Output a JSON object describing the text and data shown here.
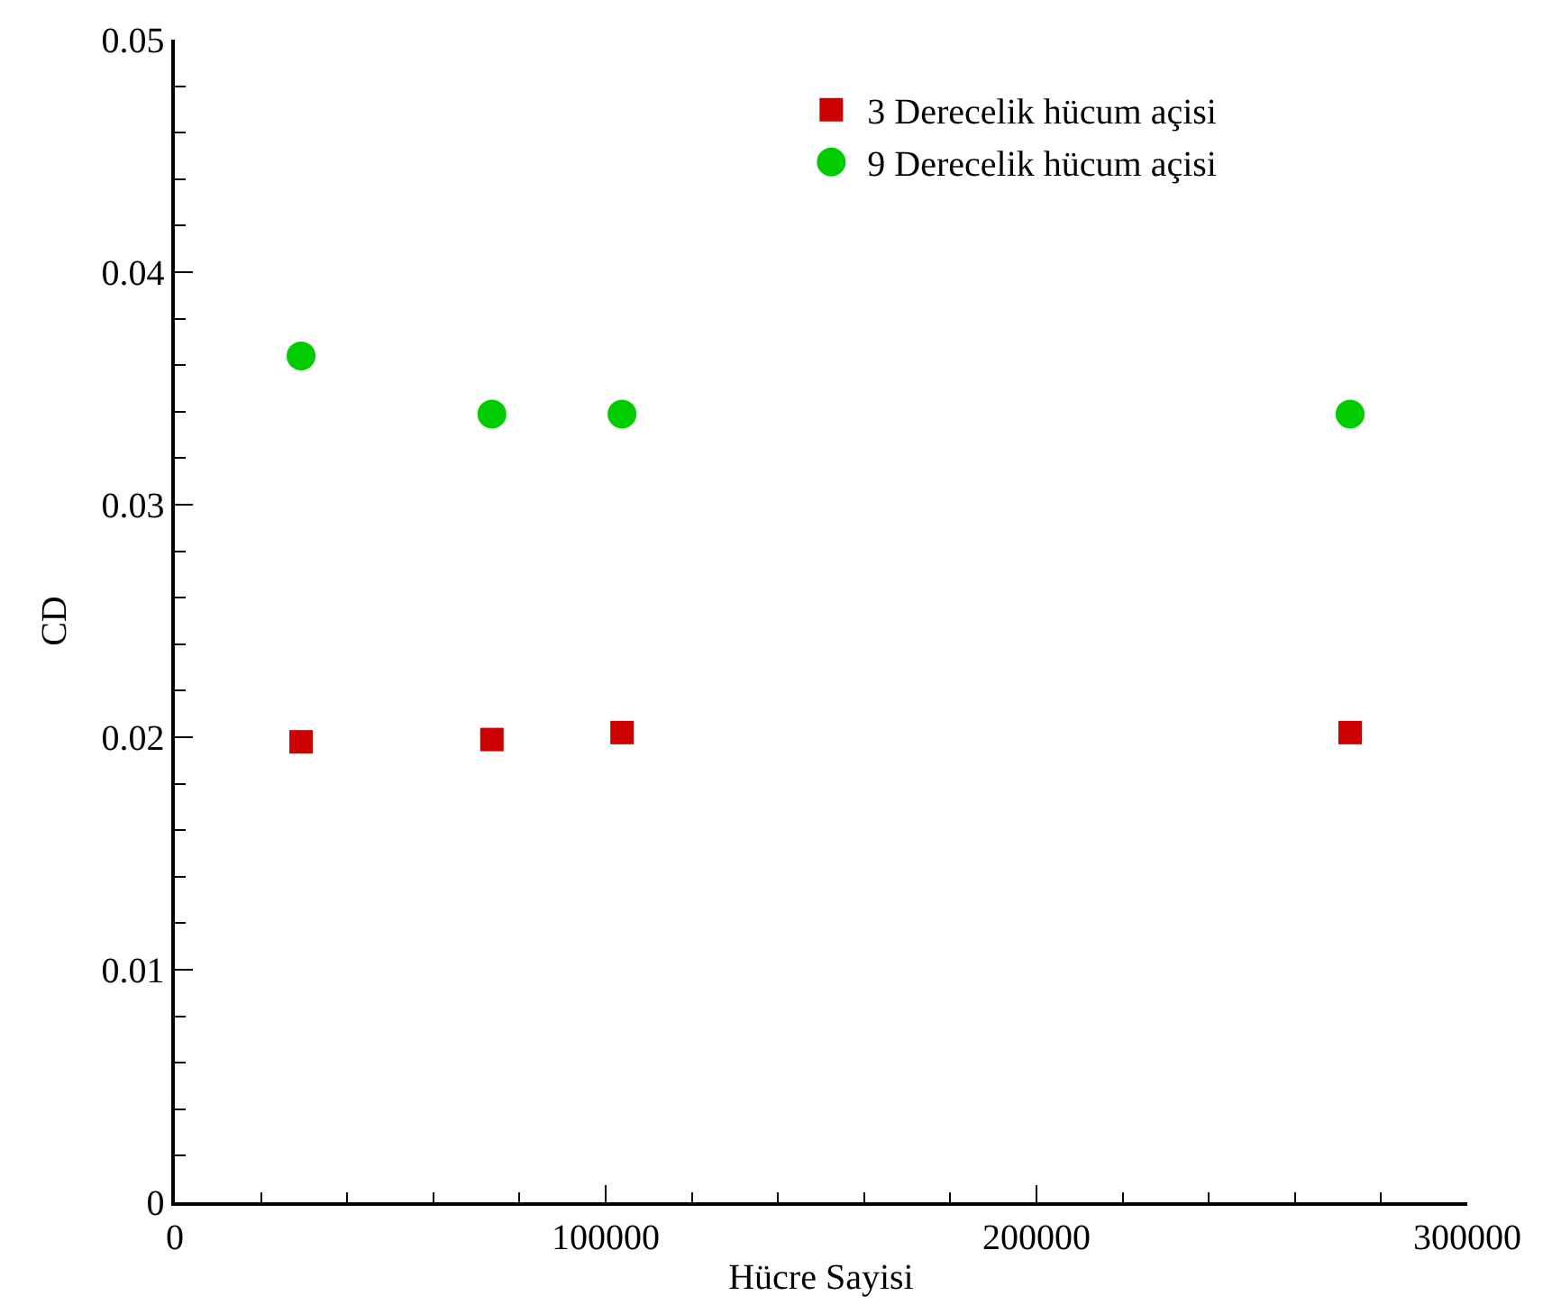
{
  "chart_data": {
    "type": "scatter",
    "xlabel": "Hücre Sayisi",
    "ylabel": "CD",
    "x": [
      29300,
      73600,
      103800,
      272800
    ],
    "series": [
      {
        "name": "3 Derecelik hücum açisi",
        "color": "#cc0000",
        "marker": "square",
        "values": [
          0.0198,
          0.0199,
          0.0202,
          0.0202
        ]
      },
      {
        "name": "9 Derecelik hücum açisi",
        "color": "#00cc00",
        "marker": "circle",
        "values": [
          0.0364,
          0.0339,
          0.0339,
          0.0339
        ]
      }
    ],
    "xlim": [
      0,
      300000
    ],
    "xticks": [
      0,
      100000,
      200000,
      300000
    ],
    "ylim": [
      0,
      0.05
    ],
    "yticks": [
      0,
      0.01,
      0.02,
      0.03,
      0.04,
      0.05
    ],
    "legend": "top right"
  }
}
